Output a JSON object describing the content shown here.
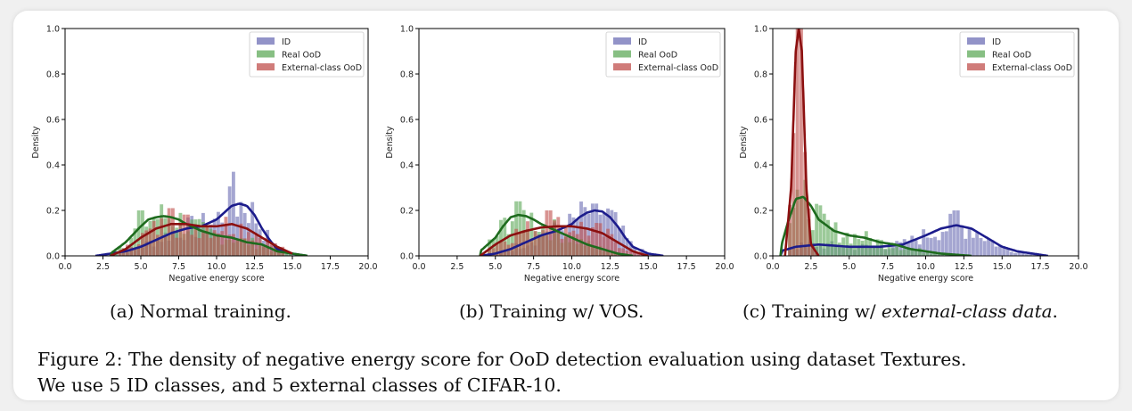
{
  "colors": {
    "id": "#6e6fb5",
    "real_ood": "#5fa95a",
    "external_ood": "#c0504d",
    "id_line": "#1c1c8c",
    "real_line": "#1e6b1e",
    "external_line": "#8c1010"
  },
  "subcaptions": {
    "a": "(a) Normal training.",
    "b": "(b) Training w/ VOS.",
    "c_prefix": "(c) Training w/ ",
    "c_italic": "external-class data",
    "c_suffix": "."
  },
  "figure_caption": {
    "line1": "Figure 2: The density of negative energy score for OoD detection evaluation using dataset Textures.",
    "line2": "We use 5 ID classes, and 5 external classes of CIFAR-10."
  },
  "chart_data": [
    {
      "type": "histogram-kde",
      "xlabel": "Negative energy score",
      "ylabel": "Density",
      "xlim": [
        0,
        20
      ],
      "ylim": [
        0,
        1.0
      ],
      "xticks": [
        "0.0",
        "2.5",
        "5.0",
        "7.5",
        "10.0",
        "12.5",
        "15.0",
        "17.5",
        "20.0"
      ],
      "yticks": [
        "0.0",
        "0.2",
        "0.4",
        "0.6",
        "0.8",
        "1.0"
      ],
      "legend": [
        "ID",
        "Real OoD",
        "External-class OoD"
      ],
      "legend_position": "top-right",
      "series": [
        {
          "name": "ID",
          "hist_range": [
            2.5,
            15.5
          ],
          "kde": {
            "x": [
              2,
              3,
              4,
              5,
              6,
              7,
              8,
              9,
              10,
              10.5,
              11,
              11.5,
              12,
              12.5,
              13,
              13.5,
              14,
              15,
              16
            ],
            "y": [
              0,
              0.01,
              0.02,
              0.04,
              0.07,
              0.1,
              0.12,
              0.13,
              0.16,
              0.19,
              0.22,
              0.23,
              0.22,
              0.18,
              0.12,
              0.07,
              0.03,
              0.01,
              0
            ]
          },
          "peak": {
            "x": 11.2,
            "y": 0.37
          }
        },
        {
          "name": "Real OoD",
          "hist_range": [
            3,
            15
          ],
          "kde": {
            "x": [
              3,
              4,
              5,
              5.5,
              6,
              6.5,
              7,
              7.5,
              8,
              9,
              10,
              11,
              12,
              13,
              14,
              15,
              16
            ],
            "y": [
              0.01,
              0.06,
              0.13,
              0.16,
              0.17,
              0.175,
              0.17,
              0.16,
              0.14,
              0.11,
              0.09,
              0.08,
              0.06,
              0.05,
              0.02,
              0.01,
              0
            ]
          },
          "peak": {
            "x": 5,
            "y": 0.2
          }
        },
        {
          "name": "External-class OoD",
          "hist_range": [
            3.5,
            14.5
          ],
          "kde": {
            "x": [
              3,
              4,
              5,
              6,
              7,
              8,
              9,
              10,
              11,
              12,
              13,
              14,
              15
            ],
            "y": [
              0,
              0.03,
              0.08,
              0.12,
              0.14,
              0.14,
              0.13,
              0.13,
              0.14,
              0.12,
              0.08,
              0.04,
              0.01
            ]
          },
          "peak": {
            "x": 7,
            "y": 0.21
          }
        }
      ]
    },
    {
      "type": "histogram-kde",
      "xlabel": "Negative energy score",
      "ylabel": "Density",
      "xlim": [
        0,
        20
      ],
      "ylim": [
        0,
        1.0
      ],
      "xticks": [
        "0.0",
        "2.5",
        "5.0",
        "7.5",
        "10.0",
        "12.5",
        "15.0",
        "17.5",
        "20.0"
      ],
      "yticks": [
        "0.0",
        "0.2",
        "0.4",
        "0.6",
        "0.8",
        "1.0"
      ],
      "legend": [
        "ID",
        "Real OoD",
        "External-class OoD"
      ],
      "legend_position": "top-right",
      "series": [
        {
          "name": "ID",
          "hist_range": [
            5,
            16
          ],
          "kde": {
            "x": [
              4,
              5,
              6,
              7,
              8,
              9,
              10,
              10.5,
              11,
              11.5,
              12,
              12.5,
              13,
              13.5,
              14,
              15,
              16
            ],
            "y": [
              0,
              0.01,
              0.03,
              0.06,
              0.09,
              0.11,
              0.14,
              0.17,
              0.19,
              0.2,
              0.195,
              0.17,
              0.13,
              0.08,
              0.04,
              0.01,
              0
            ]
          },
          "peak": {
            "x": 11.5,
            "y": 0.23
          }
        },
        {
          "name": "Real OoD",
          "hist_range": [
            4.5,
            14
          ],
          "kde": {
            "x": [
              4,
              5,
              5.5,
              6,
              6.5,
              7,
              7.5,
              8,
              9,
              10,
              11,
              12,
              13,
              14
            ],
            "y": [
              0.02,
              0.08,
              0.13,
              0.17,
              0.18,
              0.175,
              0.16,
              0.14,
              0.11,
              0.08,
              0.05,
              0.03,
              0.01,
              0
            ]
          },
          "peak": {
            "x": 6.5,
            "y": 0.24
          }
        },
        {
          "name": "External-class OoD",
          "hist_range": [
            4.5,
            15
          ],
          "kde": {
            "x": [
              4,
              5,
              6,
              7,
              8,
              9,
              10,
              11,
              12,
              13,
              14,
              15
            ],
            "y": [
              0,
              0.05,
              0.09,
              0.11,
              0.125,
              0.13,
              0.13,
              0.12,
              0.1,
              0.06,
              0.02,
              0
            ]
          },
          "peak": {
            "x": 8.5,
            "y": 0.2
          }
        }
      ]
    },
    {
      "type": "histogram-kde",
      "xlabel": "Negative energy score",
      "ylabel": "Density",
      "xlim": [
        0,
        20
      ],
      "ylim": [
        0,
        1.0
      ],
      "xticks": [
        "0.0",
        "2.5",
        "5.0",
        "7.5",
        "10.0",
        "12.5",
        "15.0",
        "17.5",
        "20.0"
      ],
      "yticks": [
        "0.0",
        "0.2",
        "0.4",
        "0.6",
        "0.8",
        "1.0"
      ],
      "legend": [
        "ID",
        "Real OoD",
        "External-class OoD"
      ],
      "legend_position": "top-right",
      "series": [
        {
          "name": "ID",
          "hist_range": [
            1,
            17.5
          ],
          "kde": {
            "x": [
              0.5,
              1.5,
              3,
              5,
              7,
              8.5,
              10,
              11,
              12,
              13,
              14,
              15,
              16,
              17,
              18
            ],
            "y": [
              0.02,
              0.04,
              0.05,
              0.04,
              0.04,
              0.05,
              0.09,
              0.12,
              0.135,
              0.12,
              0.08,
              0.04,
              0.02,
              0.01,
              0
            ]
          },
          "peak": {
            "x": 12,
            "y": 0.2
          }
        },
        {
          "name": "Real OoD",
          "hist_range": [
            1,
            12
          ],
          "kde": {
            "x": [
              0.5,
              1,
              1.5,
              2,
              2.5,
              3,
              4,
              5,
              6,
              7,
              8,
              9,
              10,
              11,
              12,
              13
            ],
            "y": [
              0.03,
              0.15,
              0.25,
              0.26,
              0.22,
              0.16,
              0.11,
              0.09,
              0.08,
              0.06,
              0.05,
              0.03,
              0.02,
              0.01,
              0.005,
              0
            ]
          },
          "peak": {
            "x": 1.8,
            "y": 0.26
          }
        },
        {
          "name": "External-class OoD",
          "hist_range": [
            1,
            3
          ],
          "kde": {
            "x": [
              0.8,
              1.2,
              1.5,
              1.7,
              1.9,
              2.2,
              2.5,
              3
            ],
            "y": [
              0,
              0.3,
              0.9,
              1.0,
              0.9,
              0.3,
              0.05,
              0
            ]
          },
          "peak": {
            "x": 1.8,
            "y": 1.0
          }
        }
      ]
    }
  ]
}
